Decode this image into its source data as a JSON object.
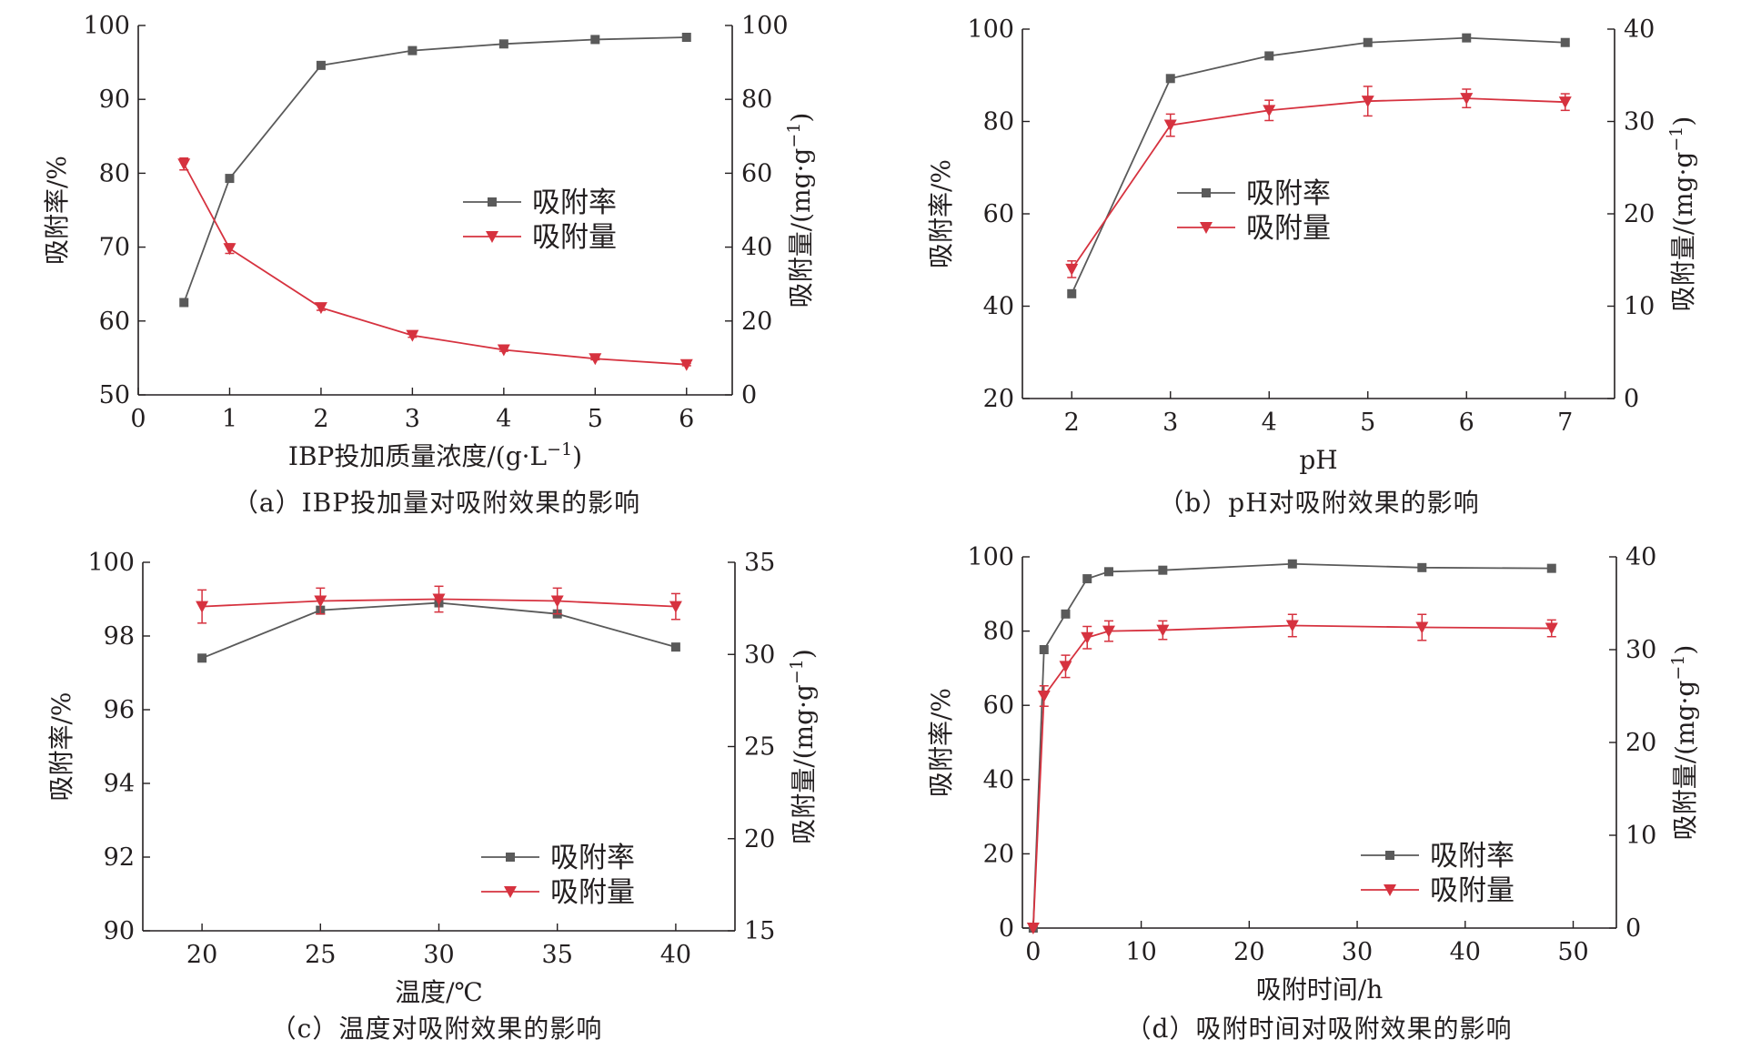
{
  "colors": {
    "rate": "#5a5a5a",
    "amount": "#d6323f",
    "axis": "#231f20"
  },
  "legend": {
    "rate_label": "吸附率",
    "amount_label": "吸附量"
  },
  "chart_data": [
    {
      "id": "a",
      "type": "line",
      "caption": "（a）IBP投加量对吸附效果的影响",
      "xlabel": "IBP投加质量浓度/(g·L",
      "xlabel_sup": "−1",
      "xlabel_tail": ")",
      "ylabel_left": "吸附率/%",
      "ylabel_right": "吸附量/(mg·g",
      "ylabel_right_sup": "−1",
      "ylabel_right_tail": ")",
      "xlim": [
        0,
        6.5
      ],
      "xticks": [
        0,
        1,
        2,
        3,
        4,
        5,
        6
      ],
      "ylim_left": [
        50,
        100
      ],
      "yticks_left": [
        50,
        60,
        70,
        80,
        90,
        100
      ],
      "ylim_right": [
        0,
        100
      ],
      "yticks_right": [
        0,
        20,
        40,
        60,
        80,
        100
      ],
      "legend_position": "center-right",
      "series": [
        {
          "name": "吸附率",
          "axis": "left",
          "marker": "square",
          "x": [
            0.5,
            1,
            2,
            3,
            4,
            5,
            6
          ],
          "y": [
            62.5,
            79.3,
            94.6,
            96.6,
            97.5,
            98.1,
            98.4
          ]
        },
        {
          "name": "吸附量",
          "axis": "right",
          "marker": "triangle-down",
          "x": [
            0.5,
            1,
            2,
            3,
            4,
            5,
            6
          ],
          "y": [
            62.5,
            39.6,
            23.6,
            16.1,
            12.2,
            9.8,
            8.2
          ],
          "err": [
            1.6,
            1.3,
            0.7,
            0.5,
            0.4,
            0.3,
            0.3
          ]
        }
      ]
    },
    {
      "id": "b",
      "type": "line",
      "caption": "（b）pH对吸附效果的影响",
      "xlabel": "pH",
      "ylabel_left": "吸附率/%",
      "ylabel_right": "吸附量/(mg·g",
      "ylabel_right_sup": "−1",
      "ylabel_right_tail": ")",
      "xlim": [
        1.5,
        7.5
      ],
      "xticks": [
        2,
        3,
        4,
        5,
        6,
        7
      ],
      "ylim_left": [
        20,
        100
      ],
      "yticks_left": [
        20,
        40,
        60,
        80,
        100
      ],
      "ylim_right": [
        0,
        40
      ],
      "yticks_right": [
        0,
        10,
        20,
        30,
        40
      ],
      "legend_position": "center",
      "series": [
        {
          "name": "吸附率",
          "axis": "left",
          "marker": "square",
          "x": [
            2,
            3,
            4,
            5,
            6,
            7
          ],
          "y": [
            42.7,
            89.3,
            94.2,
            97.1,
            98.1,
            97.1
          ]
        },
        {
          "name": "吸附量",
          "axis": "right",
          "marker": "triangle-down",
          "x": [
            2,
            3,
            4,
            5,
            6,
            7
          ],
          "y": [
            14.0,
            29.6,
            31.2,
            32.2,
            32.5,
            32.1
          ],
          "err": [
            0.9,
            1.2,
            1.1,
            1.6,
            1.0,
            0.9
          ]
        }
      ]
    },
    {
      "id": "c",
      "type": "line",
      "caption": "（c）温度对吸附效果的影响",
      "xlabel": "温度/℃",
      "ylabel_left": "吸附率/%",
      "ylabel_right": "吸附量/(mg·g",
      "ylabel_right_sup": "−1",
      "ylabel_right_tail": ")",
      "xlim": [
        17.5,
        42.5
      ],
      "xticks": [
        20,
        25,
        30,
        35,
        40
      ],
      "ylim_left": [
        90,
        100
      ],
      "yticks_left": [
        90,
        92,
        94,
        96,
        98,
        100
      ],
      "ylim_right": [
        15,
        35
      ],
      "yticks_right": [
        15,
        20,
        25,
        30,
        35
      ],
      "legend_position": "bottom-right",
      "series": [
        {
          "name": "吸附率",
          "axis": "left",
          "marker": "square",
          "x": [
            20,
            25,
            30,
            35,
            40
          ],
          "y": [
            97.4,
            98.7,
            98.9,
            98.6,
            97.7
          ]
        },
        {
          "name": "吸附量",
          "axis": "right",
          "marker": "triangle-down",
          "x": [
            20,
            25,
            30,
            35,
            40
          ],
          "y": [
            32.6,
            32.9,
            33.0,
            32.9,
            32.6
          ],
          "err": [
            0.9,
            0.7,
            0.7,
            0.7,
            0.7
          ]
        }
      ]
    },
    {
      "id": "d",
      "type": "line",
      "caption": "（d）吸附时间对吸附效果的影响",
      "xlabel": "吸附时间/h",
      "ylabel_left": "吸附率/%",
      "ylabel_right": "吸附量/(mg·g",
      "ylabel_right_sup": "−1",
      "ylabel_right_tail": ")",
      "xlim": [
        -1,
        54
      ],
      "xticks": [
        0,
        10,
        20,
        30,
        40,
        50
      ],
      "ylim_left": [
        0,
        100
      ],
      "yticks_left": [
        0,
        20,
        40,
        60,
        80,
        100
      ],
      "ylim_right": [
        0,
        40
      ],
      "yticks_right": [
        0,
        10,
        20,
        30,
        40
      ],
      "legend_position": "bottom-right",
      "series": [
        {
          "name": "吸附率",
          "axis": "left",
          "marker": "square",
          "x": [
            0,
            1,
            3,
            5,
            7,
            12,
            24,
            36,
            48
          ],
          "y": [
            0,
            75.0,
            84.6,
            94.1,
            96.0,
            96.4,
            98.1,
            97.1,
            96.9
          ]
        },
        {
          "name": "吸附量",
          "axis": "right",
          "marker": "triangle-down",
          "x": [
            0,
            1,
            3,
            5,
            7,
            12,
            24,
            36,
            48
          ],
          "y": [
            0,
            25.0,
            28.2,
            31.3,
            32.0,
            32.1,
            32.6,
            32.4,
            32.3
          ],
          "err": [
            0,
            1.1,
            1.2,
            1.2,
            1.1,
            1.0,
            1.2,
            1.4,
            0.9
          ]
        }
      ]
    }
  ]
}
